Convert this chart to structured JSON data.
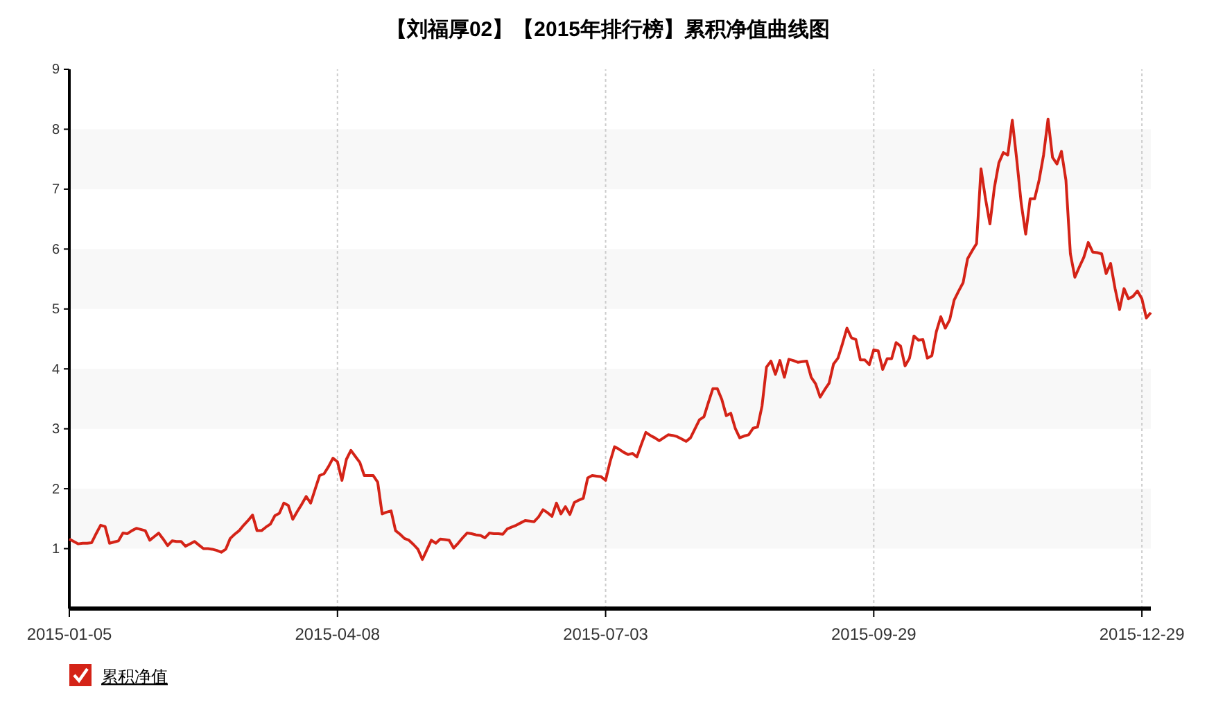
{
  "chart_data": {
    "type": "line",
    "title": "【刘福厚02】【2015年排行榜】累积净值曲线图",
    "categories": [
      "2015-01-05",
      null,
      null,
      null,
      null,
      null,
      null,
      null,
      null,
      null,
      null,
      null,
      null,
      null,
      null,
      null,
      null,
      null,
      null,
      null,
      null,
      null,
      null,
      null,
      null,
      null,
      null,
      null,
      null,
      null,
      null,
      null,
      null,
      null,
      null,
      null,
      null,
      null,
      null,
      null,
      null,
      null,
      null,
      null,
      null,
      null,
      null,
      null,
      null,
      null,
      null,
      null,
      null,
      null,
      null,
      null,
      null,
      null,
      null,
      null,
      "2015-04-08",
      null,
      null,
      null,
      null,
      null,
      null,
      null,
      null,
      null,
      null,
      null,
      null,
      null,
      null,
      null,
      null,
      null,
      null,
      null,
      null,
      null,
      null,
      null,
      null,
      null,
      null,
      null,
      null,
      null,
      null,
      null,
      null,
      null,
      null,
      null,
      null,
      null,
      null,
      null,
      null,
      null,
      null,
      null,
      null,
      null,
      null,
      null,
      null,
      null,
      null,
      null,
      null,
      null,
      null,
      null,
      null,
      null,
      null,
      null,
      "2015-07-03",
      null,
      null,
      null,
      null,
      null,
      null,
      null,
      null,
      null,
      null,
      null,
      null,
      null,
      null,
      null,
      null,
      null,
      null,
      null,
      null,
      null,
      null,
      null,
      null,
      null,
      null,
      null,
      null,
      null,
      null,
      null,
      null,
      null,
      null,
      null,
      null,
      null,
      null,
      null,
      null,
      null,
      null,
      null,
      null,
      null,
      null,
      null,
      null,
      null,
      null,
      null,
      null,
      null,
      null,
      null,
      null,
      null,
      null,
      null,
      "2015-09-29",
      null,
      null,
      null,
      null,
      null,
      null,
      null,
      null,
      null,
      null,
      null,
      null,
      null,
      null,
      null,
      null,
      null,
      null,
      null,
      null,
      null,
      null,
      null,
      null,
      null,
      null,
      null,
      null,
      null,
      null,
      null,
      null,
      null,
      null,
      null,
      null,
      null,
      null,
      null,
      null,
      null,
      null,
      null,
      null,
      null,
      null,
      null,
      null,
      null,
      null,
      null,
      null,
      null,
      null,
      null,
      null,
      null,
      null,
      null,
      "2015-12-29",
      null,
      null
    ],
    "ylim": [
      0,
      9
    ],
    "yticks": [
      1,
      2,
      3,
      4,
      5,
      6,
      7,
      8,
      9
    ],
    "grid": true,
    "legend": "bottom left",
    "marker": "none",
    "line_style": "solid",
    "series": [
      {
        "name": "累积净值",
        "color": "#d42317",
        "values": [
          1.16,
          1.12,
          1.08,
          1.09,
          1.09,
          1.1,
          1.25,
          1.39,
          1.37,
          1.09,
          1.11,
          1.13,
          1.26,
          1.25,
          1.3,
          1.34,
          1.32,
          1.3,
          1.14,
          1.2,
          1.26,
          1.16,
          1.05,
          1.13,
          1.12,
          1.12,
          1.04,
          1.08,
          1.12,
          1.06,
          1.0,
          1.0,
          0.99,
          0.97,
          0.94,
          0.99,
          1.17,
          1.24,
          1.3,
          1.39,
          1.47,
          1.56,
          1.3,
          1.3,
          1.36,
          1.41,
          1.55,
          1.59,
          1.76,
          1.72,
          1.49,
          1.62,
          1.74,
          1.87,
          1.76,
          1.99,
          2.22,
          2.25,
          2.37,
          2.51,
          2.45,
          2.14,
          2.49,
          2.64,
          2.54,
          2.44,
          2.22,
          2.22,
          2.22,
          2.11,
          1.58,
          1.61,
          1.63,
          1.3,
          1.24,
          1.17,
          1.14,
          1.07,
          0.99,
          0.82,
          0.98,
          1.14,
          1.09,
          1.16,
          1.15,
          1.14,
          1.01,
          1.09,
          1.18,
          1.26,
          1.25,
          1.23,
          1.22,
          1.18,
          1.26,
          1.25,
          1.25,
          1.24,
          1.33,
          1.36,
          1.39,
          1.43,
          1.47,
          1.46,
          1.45,
          1.53,
          1.65,
          1.6,
          1.54,
          1.76,
          1.58,
          1.7,
          1.57,
          1.77,
          1.81,
          1.84,
          2.18,
          2.22,
          2.21,
          2.2,
          2.14,
          2.45,
          2.7,
          2.66,
          2.61,
          2.57,
          2.59,
          2.53,
          2.74,
          2.94,
          2.89,
          2.85,
          2.8,
          2.85,
          2.9,
          2.89,
          2.87,
          2.83,
          2.79,
          2.85,
          3.0,
          3.15,
          3.2,
          3.44,
          3.67,
          3.67,
          3.49,
          3.22,
          3.26,
          3.01,
          2.85,
          2.88,
          2.9,
          3.01,
          3.03,
          3.38,
          4.03,
          4.13,
          3.91,
          4.14,
          3.86,
          4.16,
          4.14,
          4.11,
          4.12,
          4.13,
          3.86,
          3.75,
          3.53,
          3.65,
          3.76,
          4.08,
          4.18,
          4.42,
          4.68,
          4.52,
          4.49,
          4.15,
          4.15,
          4.07,
          4.32,
          4.3,
          3.99,
          4.17,
          4.17,
          4.44,
          4.38,
          4.05,
          4.18,
          4.55,
          4.48,
          4.49,
          4.18,
          4.22,
          4.62,
          4.87,
          4.68,
          4.82,
          5.15,
          5.3,
          5.44,
          5.84,
          5.97,
          6.09,
          7.34,
          6.84,
          6.42,
          7.03,
          7.44,
          7.61,
          7.57,
          8.15,
          7.49,
          6.76,
          6.25,
          6.84,
          6.84,
          7.15,
          7.57,
          8.17,
          7.53,
          7.42,
          7.63,
          7.15,
          5.92,
          5.53,
          5.7,
          5.86,
          6.11,
          5.95,
          5.94,
          5.92,
          5.59,
          5.76,
          5.34,
          4.99,
          5.34,
          5.17,
          5.21,
          5.3,
          5.17,
          4.85,
          4.94
        ]
      }
    ]
  }
}
